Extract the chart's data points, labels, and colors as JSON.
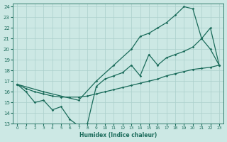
{
  "xlabel": "Humidex (Indice chaleur)",
  "bg_color": "#cce8e4",
  "grid_color": "#aacfcb",
  "line_color": "#1a6b5a",
  "xlim": [
    -0.5,
    23.5
  ],
  "ylim": [
    13,
    24.3
  ],
  "xticks": [
    0,
    1,
    2,
    3,
    4,
    5,
    6,
    7,
    8,
    9,
    10,
    11,
    12,
    13,
    14,
    15,
    16,
    17,
    18,
    19,
    20,
    21,
    22,
    23
  ],
  "yticks": [
    13,
    14,
    15,
    16,
    17,
    18,
    19,
    20,
    21,
    22,
    23,
    24
  ],
  "line_straight_x": [
    0,
    1,
    2,
    3,
    4,
    5,
    6,
    7,
    8,
    9,
    10,
    11,
    12,
    13,
    14,
    15,
    16,
    17,
    18,
    19,
    20,
    21,
    22,
    23
  ],
  "line_straight_y": [
    16.7,
    16.3,
    16.0,
    15.8,
    15.6,
    15.5,
    15.5,
    15.5,
    15.6,
    15.8,
    16.0,
    16.2,
    16.4,
    16.6,
    16.8,
    17.0,
    17.2,
    17.5,
    17.7,
    17.9,
    18.1,
    18.2,
    18.3,
    18.5
  ],
  "line_dip_x": [
    0,
    1,
    2,
    3,
    4,
    5,
    6,
    7,
    8,
    9,
    10,
    11,
    12,
    13,
    14,
    15,
    16,
    17,
    18,
    19,
    20,
    21,
    22,
    23
  ],
  "line_dip_y": [
    16.7,
    16.0,
    15.0,
    15.2,
    14.3,
    14.6,
    13.4,
    12.8,
    13.0,
    16.5,
    17.2,
    17.5,
    17.8,
    18.5,
    17.5,
    19.5,
    18.5,
    19.2,
    19.5,
    19.8,
    20.2,
    21.0,
    22.0,
    18.5
  ],
  "line_curve_x": [
    0,
    3,
    7,
    9,
    11,
    13,
    14,
    15,
    16,
    17,
    18,
    19,
    20,
    21,
    22,
    23
  ],
  "line_curve_y": [
    16.7,
    16.0,
    15.2,
    17.0,
    18.5,
    20.0,
    21.2,
    21.5,
    22.0,
    22.5,
    23.2,
    24.0,
    23.8,
    21.0,
    20.0,
    18.5
  ]
}
